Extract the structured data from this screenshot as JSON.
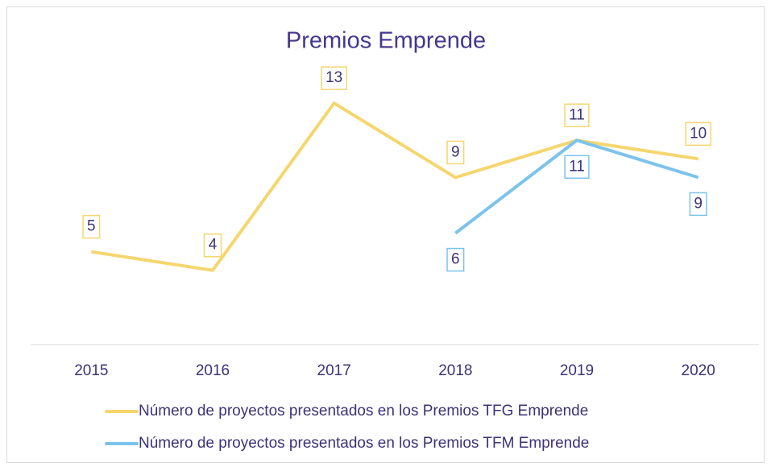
{
  "chart_data": {
    "type": "line",
    "title": "Premios Emprende",
    "categories": [
      "2015",
      "2016",
      "2017",
      "2018",
      "2019",
      "2020"
    ],
    "series": [
      {
        "name": "Número de proyectos presentados en los Premios TFG Emprende",
        "color": "#f5d66e",
        "values": [
          5,
          4,
          13,
          9,
          11,
          10
        ]
      },
      {
        "name": "Número de proyectos presentados en los Premios TFM Emprende",
        "color": "#7cc3ec",
        "values": [
          null,
          null,
          null,
          6,
          11,
          9
        ]
      }
    ],
    "ylim": [
      0,
      15
    ]
  }
}
